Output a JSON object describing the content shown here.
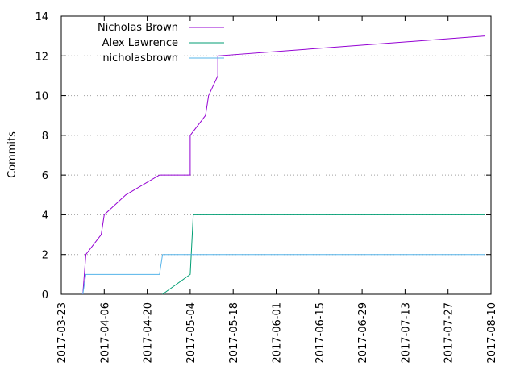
{
  "chart_data": {
    "type": "line",
    "title": "",
    "xlabel": "",
    "ylabel": "Commits",
    "x_type": "date",
    "xlim": [
      "2017-03-23",
      "2017-08-10"
    ],
    "ylim": [
      0,
      14
    ],
    "y_ticks": [
      0,
      2,
      4,
      6,
      8,
      10,
      12,
      14
    ],
    "x_ticks": [
      "2017-03-23",
      "2017-04-06",
      "2017-04-20",
      "2017-05-04",
      "2017-05-18",
      "2017-06-01",
      "2017-06-15",
      "2017-06-29",
      "2017-07-13",
      "2017-07-27",
      "2017-08-10"
    ],
    "grid": true,
    "legend_position": "top-left",
    "series": [
      {
        "name": "Nicholas Brown",
        "color": "#9400d3",
        "points": [
          [
            "2017-03-30",
            0
          ],
          [
            "2017-03-31",
            2
          ],
          [
            "2017-04-05",
            3
          ],
          [
            "2017-04-06",
            4
          ],
          [
            "2017-04-13",
            5
          ],
          [
            "2017-04-24",
            6
          ],
          [
            "2017-05-04",
            6
          ],
          [
            "2017-05-04",
            8
          ],
          [
            "2017-05-09",
            9
          ],
          [
            "2017-05-10",
            10
          ],
          [
            "2017-05-13",
            11
          ],
          [
            "2017-05-13",
            12
          ],
          [
            "2017-08-08",
            13
          ]
        ]
      },
      {
        "name": "Alex Lawrence",
        "color": "#009e73",
        "points": [
          [
            "2017-04-25",
            0
          ],
          [
            "2017-05-04",
            1
          ],
          [
            "2017-05-05",
            4
          ],
          [
            "2017-08-08",
            4
          ]
        ]
      },
      {
        "name": "nicholasbrown",
        "color": "#56b4e9",
        "points": [
          [
            "2017-03-30",
            0
          ],
          [
            "2017-03-31",
            1
          ],
          [
            "2017-04-24",
            1
          ],
          [
            "2017-04-25",
            2
          ],
          [
            "2017-08-08",
            2
          ]
        ]
      }
    ]
  }
}
